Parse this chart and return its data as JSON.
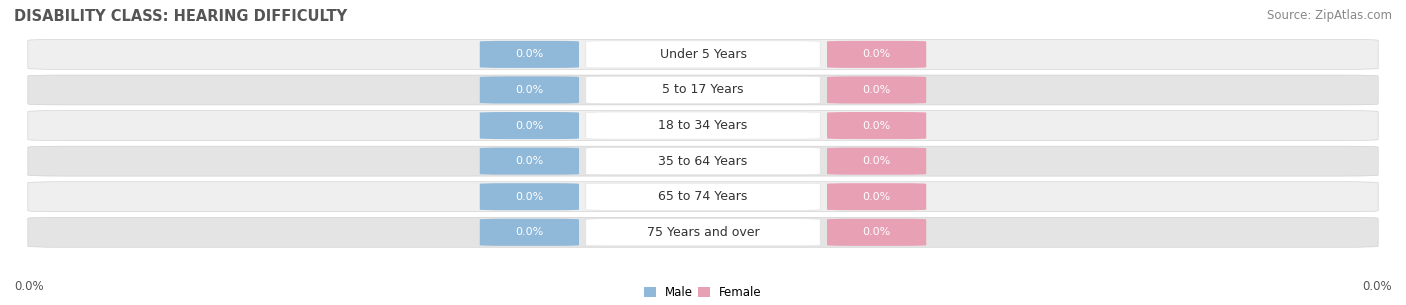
{
  "title": "DISABILITY CLASS: HEARING DIFFICULTY",
  "source": "Source: ZipAtlas.com",
  "categories": [
    "Under 5 Years",
    "5 to 17 Years",
    "18 to 34 Years",
    "35 to 64 Years",
    "65 to 74 Years",
    "75 Years and over"
  ],
  "male_values": [
    0.0,
    0.0,
    0.0,
    0.0,
    0.0,
    0.0
  ],
  "female_values": [
    0.0,
    0.0,
    0.0,
    0.0,
    0.0,
    0.0
  ],
  "male_color": "#90b8d8",
  "female_color": "#e8a0b4",
  "male_label": "Male",
  "female_label": "Female",
  "row_bg_color_odd": "#efefef",
  "row_bg_color_even": "#e4e4e4",
  "title_fontsize": 10.5,
  "source_fontsize": 8.5,
  "label_fontsize": 8.5,
  "value_fontsize": 8,
  "category_fontsize": 9
}
